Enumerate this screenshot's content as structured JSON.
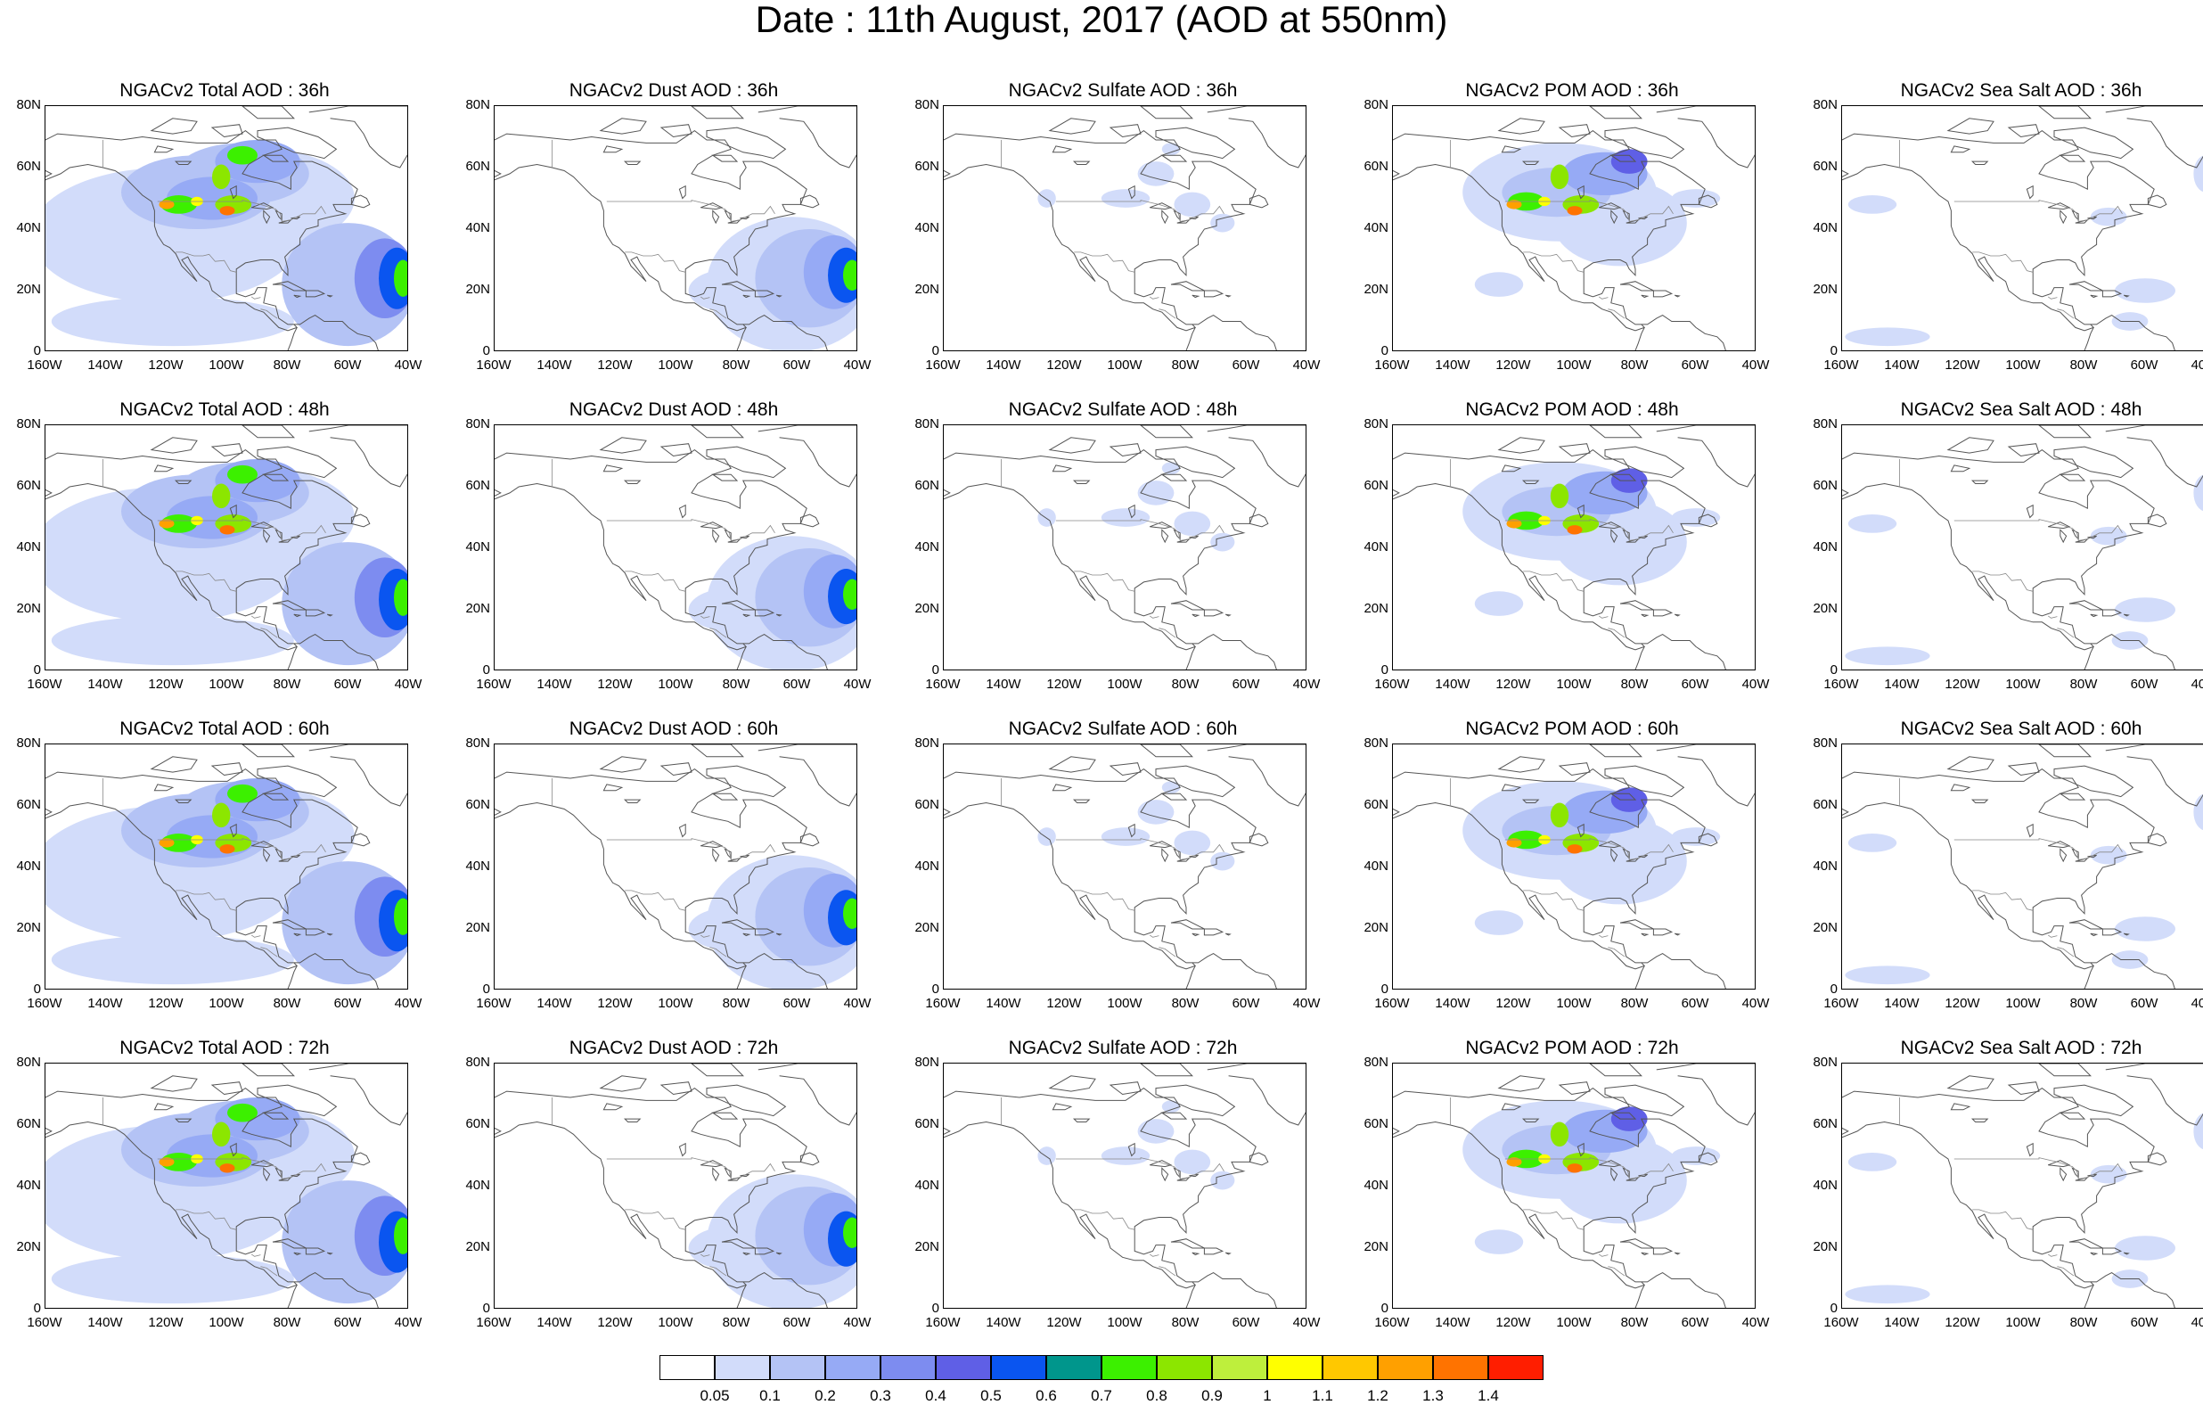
{
  "title": "Date : 11th August, 2017 (AOD at 550nm)",
  "lat_labels": [
    "80N",
    "60N",
    "40N",
    "20N",
    "0"
  ],
  "lon_labels": [
    "160W",
    "140W",
    "120W",
    "100W",
    "80W",
    "60W",
    "40W"
  ],
  "panels": [
    {
      "title": "NGACv2 Total AOD : 36h",
      "species": "total",
      "hour": 36
    },
    {
      "title": "NGACv2 Dust AOD : 36h",
      "species": "dust",
      "hour": 36
    },
    {
      "title": "NGACv2 Sulfate AOD : 36h",
      "species": "sulfate",
      "hour": 36
    },
    {
      "title": "NGACv2 POM AOD : 36h",
      "species": "pom",
      "hour": 36
    },
    {
      "title": "NGACv2 Sea Salt AOD : 36h",
      "species": "seasalt",
      "hour": 36
    },
    {
      "title": "NGACv2 Total AOD : 48h",
      "species": "total",
      "hour": 48
    },
    {
      "title": "NGACv2 Dust AOD : 48h",
      "species": "dust",
      "hour": 48
    },
    {
      "title": "NGACv2 Sulfate AOD : 48h",
      "species": "sulfate",
      "hour": 48
    },
    {
      "title": "NGACv2 POM AOD : 48h",
      "species": "pom",
      "hour": 48
    },
    {
      "title": "NGACv2 Sea Salt AOD : 48h",
      "species": "seasalt",
      "hour": 48
    },
    {
      "title": "NGACv2 Total AOD : 60h",
      "species": "total",
      "hour": 60
    },
    {
      "title": "NGACv2 Dust AOD : 60h",
      "species": "dust",
      "hour": 60
    },
    {
      "title": "NGACv2 Sulfate AOD : 60h",
      "species": "sulfate",
      "hour": 60
    },
    {
      "title": "NGACv2 POM AOD : 60h",
      "species": "pom",
      "hour": 60
    },
    {
      "title": "NGACv2 Sea Salt AOD : 60h",
      "species": "seasalt",
      "hour": 60
    },
    {
      "title": "NGACv2 Total AOD : 72h",
      "species": "total",
      "hour": 72
    },
    {
      "title": "NGACv2 Dust AOD : 72h",
      "species": "dust",
      "hour": 72
    },
    {
      "title": "NGACv2 Sulfate AOD : 72h",
      "species": "sulfate",
      "hour": 72
    },
    {
      "title": "NGACv2 POM AOD : 72h",
      "species": "pom",
      "hour": 72
    },
    {
      "title": "NGACv2 Sea Salt  AOD : 72h",
      "species": "seasalt",
      "hour": 72
    }
  ],
  "colorbar": {
    "labels": [
      "0.05",
      "0.1",
      "0.2",
      "0.3",
      "0.4",
      "0.5",
      "0.6",
      "0.7",
      "0.8",
      "0.9",
      "1",
      "1.1",
      "1.2",
      "1.3",
      "1.4"
    ],
    "colors": [
      "#ffffff",
      "#d2dcfa",
      "#b4c3f5",
      "#96aaf5",
      "#7d8cf0",
      "#5f5fe6",
      "#0a55f0",
      "#00968c",
      "#3cf000",
      "#8ce600",
      "#beef3c",
      "#ffff00",
      "#ffc800",
      "#ffa000",
      "#ff7300",
      "#ff1e00"
    ]
  },
  "map_extent": {
    "lon_min": -160,
    "lon_max": -40,
    "lat_min": 0,
    "lat_max": 80
  },
  "chart_data": {
    "type": "heatmap",
    "title": "Date : 11th August, 2017 (AOD at 550nm)",
    "x": {
      "range": [
        -160,
        -40
      ],
      "ticks": [
        "160W",
        "140W",
        "120W",
        "100W",
        "80W",
        "60W",
        "40W"
      ]
    },
    "y": {
      "range": [
        0,
        80
      ],
      "ticks": [
        "0",
        "20N",
        "40N",
        "60N",
        "80N"
      ]
    },
    "levels": [
      0.05,
      0.1,
      0.2,
      0.3,
      0.4,
      0.5,
      0.6,
      0.7,
      0.8,
      0.9,
      1,
      1.1,
      1.2,
      1.3,
      1.4
    ],
    "grid": false
  }
}
